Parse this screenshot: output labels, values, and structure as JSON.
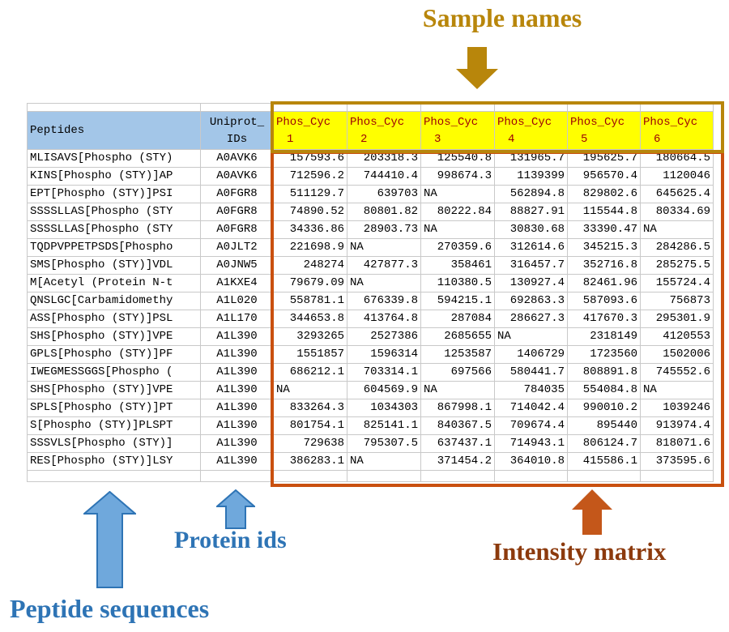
{
  "annotations": {
    "sample_names": "Sample names",
    "peptide_sequences": "Peptide sequences",
    "protein_ids": "Protein ids",
    "intensity_matrix": "Intensity matrix"
  },
  "colors": {
    "header_yellow": "#FFFF00",
    "header_blue": "#A3C6E8",
    "sample_header_text": "#9C0006",
    "sample_names_gold": "#B8860B",
    "intensity_border_orange": "#C9500F",
    "blue_arrow_fill": "#6FA8DC",
    "blue_arrow_stroke": "#2E74B5",
    "blue_label_text": "#2E74B5",
    "orange_arrow_fill": "#C4571A",
    "intensity_label_text": "#8C3A0D",
    "gridline_gray": "#c9c9c9"
  },
  "table": {
    "peptides_header": "Peptides",
    "uniprot_header_line1": "Uniprot_",
    "uniprot_header_line2": "IDs",
    "samples": [
      {
        "line1": "Phos_Cyc",
        "line2": "1"
      },
      {
        "line1": "Phos_Cyc",
        "line2": "2"
      },
      {
        "line1": "Phos_Cyc",
        "line2": "3"
      },
      {
        "line1": "Phos_Cyc",
        "line2": "4"
      },
      {
        "line1": "Phos_Cyc",
        "line2": "5"
      },
      {
        "line1": "Phos_Cyc",
        "line2": "6"
      }
    ],
    "missing_value": "NA",
    "rows": [
      {
        "peptide": "MLISAVS[Phospho (STY)",
        "uniprot": "A0AVK6",
        "values": [
          "157593.6",
          "203318.3",
          "125540.8",
          "131965.7",
          "195625.7",
          "180664.5"
        ]
      },
      {
        "peptide": "KINS[Phospho (STY)]AP",
        "uniprot": "A0AVK6",
        "values": [
          "712596.2",
          "744410.4",
          "998674.3",
          "1139399",
          "956570.4",
          "1120046"
        ]
      },
      {
        "peptide": "EPT[Phospho (STY)]PSI",
        "uniprot": "A0FGR8",
        "values": [
          "511129.7",
          "639703",
          "NA",
          "562894.8",
          "829802.6",
          "645625.4"
        ]
      },
      {
        "peptide": "SSSSLLAS[Phospho (STY",
        "uniprot": "A0FGR8",
        "values": [
          "74890.52",
          "80801.82",
          "80222.84",
          "88827.91",
          "115544.8",
          "80334.69"
        ]
      },
      {
        "peptide": "SSSSLLAS[Phospho (STY",
        "uniprot": "A0FGR8",
        "values": [
          "34336.86",
          "28903.73",
          "NA",
          "30830.68",
          "33390.47",
          "NA"
        ]
      },
      {
        "peptide": "TQDPVPPETPSDS[Phospho",
        "uniprot": "A0JLT2",
        "values": [
          "221698.9",
          "NA",
          "270359.6",
          "312614.6",
          "345215.3",
          "284286.5"
        ]
      },
      {
        "peptide": "SMS[Phospho (STY)]VDL",
        "uniprot": "A0JNW5",
        "values": [
          "248274",
          "427877.3",
          "358461",
          "316457.7",
          "352716.8",
          "285275.5"
        ]
      },
      {
        "peptide": "M[Acetyl (Protein N-t",
        "uniprot": "A1KXE4",
        "values": [
          "79679.09",
          "NA",
          "110380.5",
          "130927.4",
          "82461.96",
          "155724.4"
        ]
      },
      {
        "peptide": "QNSLGC[Carbamidomethy",
        "uniprot": "A1L020",
        "values": [
          "558781.1",
          "676339.8",
          "594215.1",
          "692863.3",
          "587093.6",
          "756873"
        ]
      },
      {
        "peptide": "ASS[Phospho (STY)]PSL",
        "uniprot": "A1L170",
        "values": [
          "344653.8",
          "413764.8",
          "287084",
          "286627.3",
          "417670.3",
          "295301.9"
        ]
      },
      {
        "peptide": "SHS[Phospho (STY)]VPE",
        "uniprot": "A1L390",
        "values": [
          "3293265",
          "2527386",
          "2685655",
          "NA",
          "2318149",
          "4120553"
        ]
      },
      {
        "peptide": "GPLS[Phospho (STY)]PF",
        "uniprot": "A1L390",
        "values": [
          "1551857",
          "1596314",
          "1253587",
          "1406729",
          "1723560",
          "1502006"
        ]
      },
      {
        "peptide": "IWEGMESSGGS[Phospho (",
        "uniprot": "A1L390",
        "values": [
          "686212.1",
          "703314.1",
          "697566",
          "580441.7",
          "808891.8",
          "745552.6"
        ]
      },
      {
        "peptide": "SHS[Phospho (STY)]VPE",
        "uniprot": "A1L390",
        "values": [
          "NA",
          "604569.9",
          "NA",
          "784035",
          "554084.8",
          "NA"
        ]
      },
      {
        "peptide": "SPLS[Phospho (STY)]PT",
        "uniprot": "A1L390",
        "values": [
          "833264.3",
          "1034303",
          "867998.1",
          "714042.4",
          "990010.2",
          "1039246"
        ]
      },
      {
        "peptide": "S[Phospho (STY)]PLSPT",
        "uniprot": "A1L390",
        "values": [
          "801754.1",
          "825141.1",
          "840367.5",
          "709674.4",
          "895440",
          "913974.4"
        ]
      },
      {
        "peptide": "SSSVLS[Phospho (STY)]",
        "uniprot": "A1L390",
        "values": [
          "729638",
          "795307.5",
          "637437.1",
          "714943.1",
          "806124.7",
          "818071.6"
        ]
      },
      {
        "peptide": "RES[Phospho (STY)]LSY",
        "uniprot": "A1L390",
        "values": [
          "386283.1",
          "NA",
          "371454.2",
          "364010.8",
          "415586.1",
          "373595.6"
        ]
      }
    ]
  }
}
